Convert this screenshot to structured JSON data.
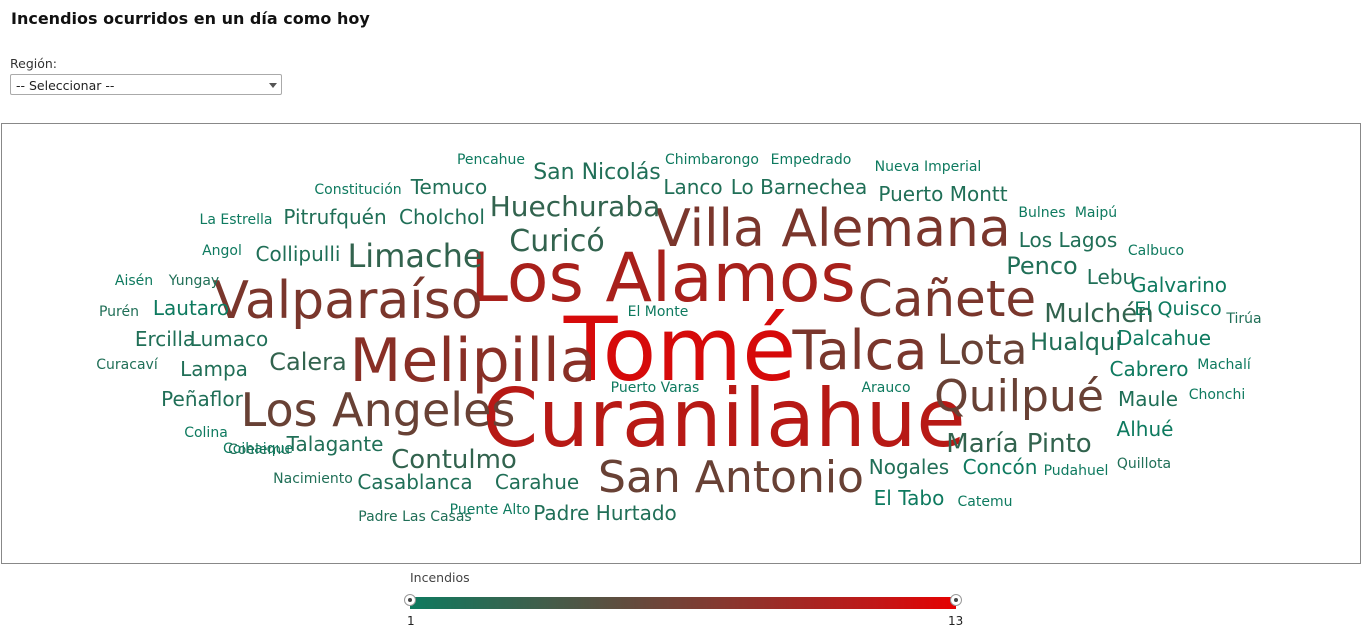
{
  "header": {
    "title": "Incendios ocurridos en un día como hoy"
  },
  "filter": {
    "label": "Región:",
    "selected": "-- Seleccionar --"
  },
  "legend": {
    "title": "Incendios",
    "min_label": "1",
    "max_label": "13",
    "color_low": "#0e7a5f",
    "color_high": "#e60000"
  },
  "chart_data": {
    "type": "wordcloud",
    "value_range": [
      1,
      13
    ],
    "words": [
      {
        "text": "Tomé",
        "value": 13
      },
      {
        "text": "Curanilahue",
        "value": 11
      },
      {
        "text": "Los Alamos",
        "value": 10
      },
      {
        "text": "Villa Alemana",
        "value": 7
      },
      {
        "text": "Melipilla",
        "value": 8
      },
      {
        "text": "Talca",
        "value": 7
      },
      {
        "text": "Valparaíso",
        "value": 7
      },
      {
        "text": "Cañete",
        "value": 7
      },
      {
        "text": "Los Angeles",
        "value": 6
      },
      {
        "text": "San Antonio",
        "value": 6
      },
      {
        "text": "Quilpué",
        "value": 6
      },
      {
        "text": "Lota",
        "value": 6
      },
      {
        "text": "Limache",
        "value": 3
      },
      {
        "text": "Curicó",
        "value": 3
      },
      {
        "text": "Huechuraba",
        "value": 3
      },
      {
        "text": "Mulchén",
        "value": 3
      },
      {
        "text": "Calera",
        "value": 3
      },
      {
        "text": "Contulmo",
        "value": 3
      },
      {
        "text": "María Pinto",
        "value": 3
      },
      {
        "text": "Pencahue",
        "value": 1
      },
      {
        "text": "San Nicolás",
        "value": 2
      },
      {
        "text": "Chimbarongo",
        "value": 1
      },
      {
        "text": "Empedrado",
        "value": 1
      },
      {
        "text": "Nueva Imperial",
        "value": 1
      },
      {
        "text": "Constitución",
        "value": 1
      },
      {
        "text": "Temuco",
        "value": 2
      },
      {
        "text": "Lanco",
        "value": 2
      },
      {
        "text": "Lo Barnechea",
        "value": 2
      },
      {
        "text": "Puerto Montt",
        "value": 2
      },
      {
        "text": "La Estrella",
        "value": 1
      },
      {
        "text": "Pitrufquén",
        "value": 2
      },
      {
        "text": "Cholchol",
        "value": 2
      },
      {
        "text": "Bulnes",
        "value": 1
      },
      {
        "text": "Maipú",
        "value": 1
      },
      {
        "text": "Angol",
        "value": 1
      },
      {
        "text": "Collipulli",
        "value": 2
      },
      {
        "text": "Los Lagos",
        "value": 2
      },
      {
        "text": "Calbuco",
        "value": 1
      },
      {
        "text": "Penco",
        "value": 2
      },
      {
        "text": "Lebu",
        "value": 2
      },
      {
        "text": "Galvarino",
        "value": 1
      },
      {
        "text": "Aisén",
        "value": 1
      },
      {
        "text": "Yungay",
        "value": 2
      },
      {
        "text": "El Quisco",
        "value": 1
      },
      {
        "text": "Purén",
        "value": 2
      },
      {
        "text": "Lautaro",
        "value": 1
      },
      {
        "text": "El Monte",
        "value": 1
      },
      {
        "text": "Tirúa",
        "value": 2
      },
      {
        "text": "Ercilla",
        "value": 2
      },
      {
        "text": "Lumaco",
        "value": 2
      },
      {
        "text": "Dalcahue",
        "value": 1
      },
      {
        "text": "Curacaví",
        "value": 2
      },
      {
        "text": "Lampa",
        "value": 2
      },
      {
        "text": "Hualqui",
        "value": 2
      },
      {
        "text": "Cabrero",
        "value": 1
      },
      {
        "text": "Machalí",
        "value": 1
      },
      {
        "text": "Puerto Varas",
        "value": 1
      },
      {
        "text": "Arauco",
        "value": 1
      },
      {
        "text": "Peñaflor",
        "value": 2
      },
      {
        "text": "Maule",
        "value": 2
      },
      {
        "text": "Chonchi",
        "value": 1
      },
      {
        "text": "Colina",
        "value": 1
      },
      {
        "text": "Coelemu",
        "value": 2
      },
      {
        "text": "Talagante",
        "value": 2
      },
      {
        "text": "Alhué",
        "value": 1
      },
      {
        "text": "Coihaique",
        "value": 1
      },
      {
        "text": "Nacimiento",
        "value": 2
      },
      {
        "text": "Casablanca",
        "value": 2
      },
      {
        "text": "Carahue",
        "value": 2
      },
      {
        "text": "Nogales",
        "value": 2
      },
      {
        "text": "Concón",
        "value": 1
      },
      {
        "text": "Pudahuel",
        "value": 1
      },
      {
        "text": "Quillota",
        "value": 2
      },
      {
        "text": "El Tabo",
        "value": 1
      },
      {
        "text": "Catemu",
        "value": 1
      },
      {
        "text": "Puente Alto",
        "value": 1
      },
      {
        "text": "Padre Las Casas",
        "value": 2
      },
      {
        "text": "Padre Hurtado",
        "value": 2
      }
    ]
  }
}
